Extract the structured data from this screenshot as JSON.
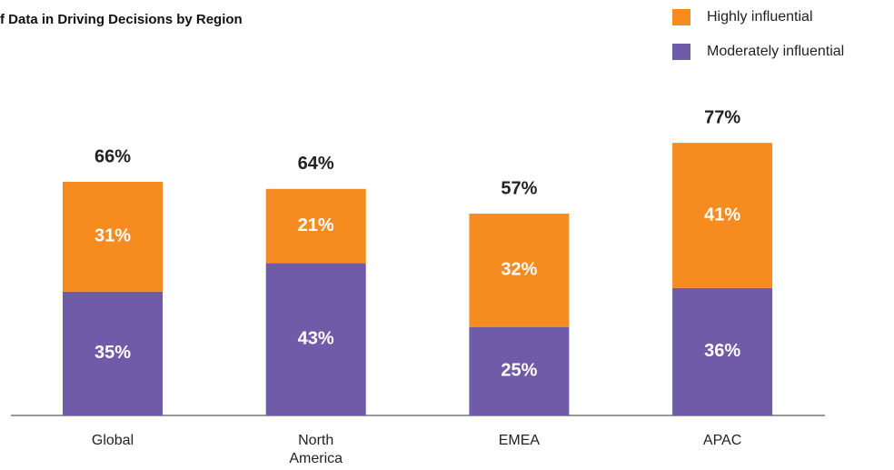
{
  "chart_data": {
    "type": "stacked_bar",
    "title": "f Data in Driving Decisions by Region",
    "categories": [
      "Global",
      "North America",
      "EMEA",
      "APAC"
    ],
    "series": [
      {
        "name": "Moderately influential",
        "color": "#6f5ba7",
        "values": [
          35,
          43,
          25,
          36
        ],
        "value_labels": [
          "35%",
          "43%",
          "25%",
          "36%"
        ]
      },
      {
        "name": "Highly influential",
        "color": "#f68b1f",
        "values": [
          31,
          21,
          32,
          41
        ],
        "value_labels": [
          "31%",
          "21%",
          "32%",
          "41%"
        ]
      }
    ],
    "totals": [
      66,
      64,
      57,
      77
    ],
    "total_labels": [
      "66%",
      "64%",
      "57%",
      "77%"
    ]
  }
}
